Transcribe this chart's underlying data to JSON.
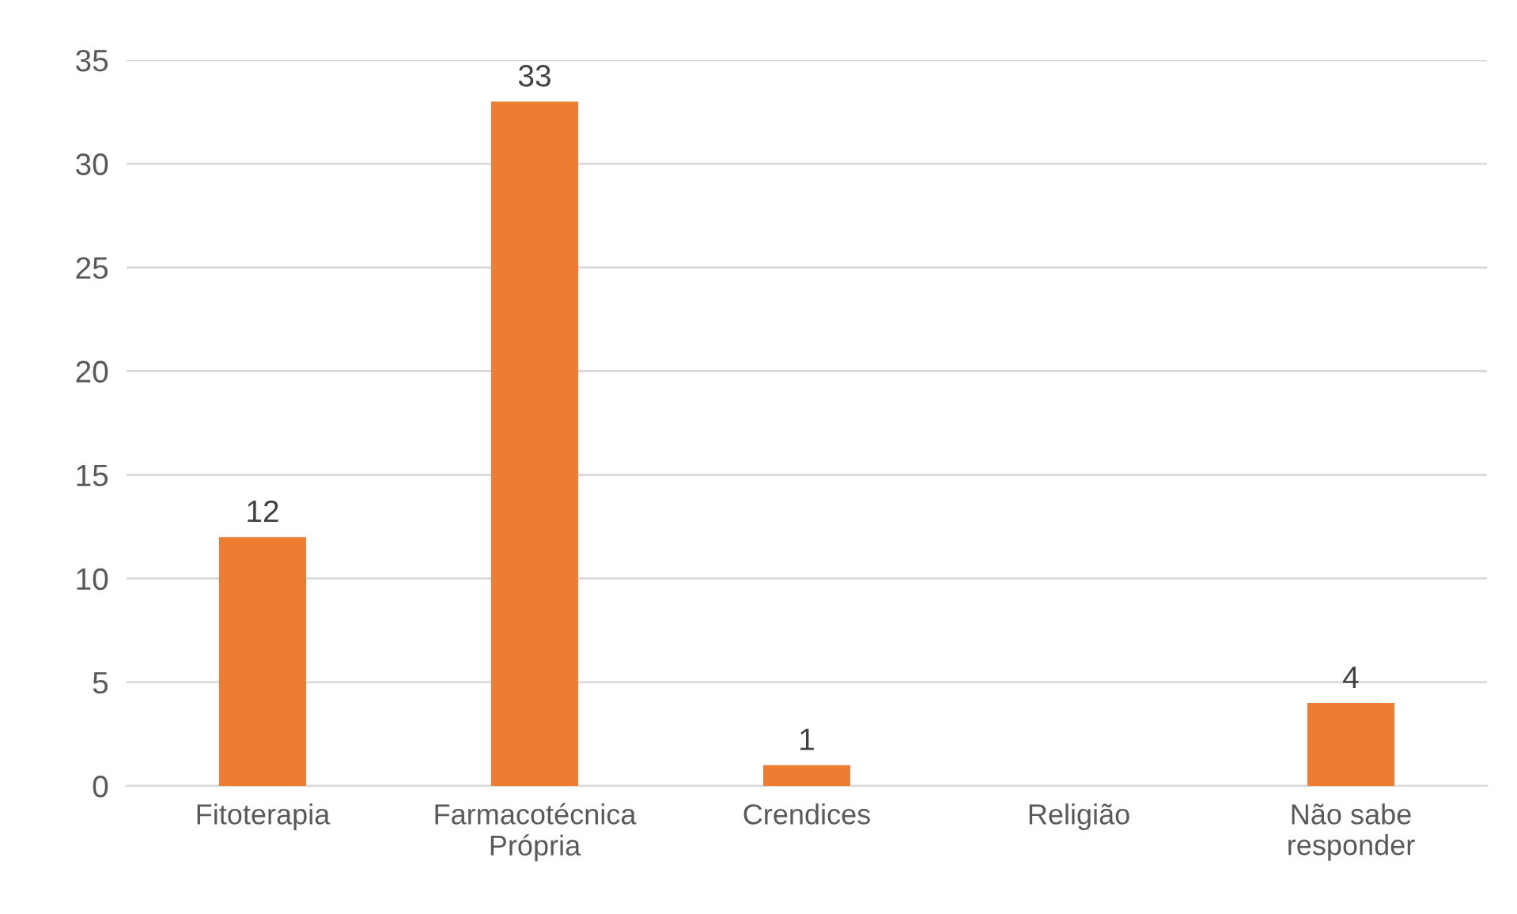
{
  "chart_data": {
    "type": "bar",
    "categories": [
      "Fitoterapia",
      "Farmacotécnica\nPrópria",
      "Crendices",
      "Religião",
      "Não sabe\nresponder"
    ],
    "values": [
      12,
      33,
      1,
      0,
      4
    ],
    "value_labels": [
      "12",
      "33",
      "1",
      null,
      "4"
    ],
    "color": "#ed7d31",
    "ylim": [
      0,
      35
    ],
    "yticks": [
      0,
      5,
      10,
      15,
      20,
      25,
      30,
      35
    ],
    "grid": "y",
    "legend": false
  }
}
